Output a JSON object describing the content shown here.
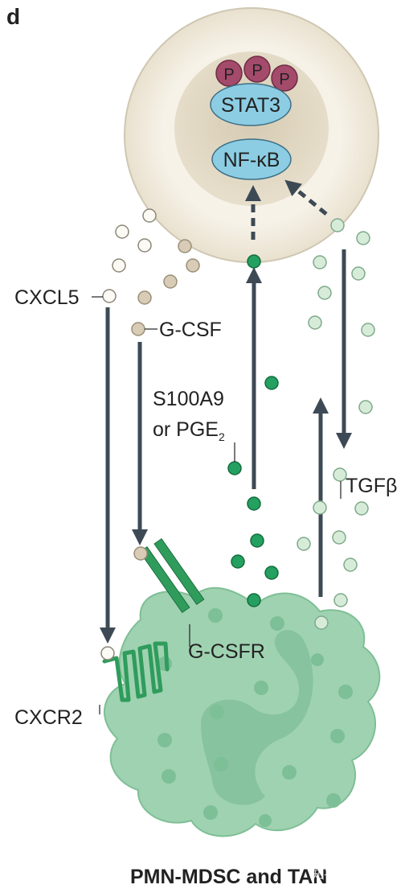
{
  "panel_label": "d",
  "nucleus": {
    "stat3": "STAT3",
    "nfkb": "NF-κB",
    "phospho": [
      "P",
      "P",
      "P"
    ]
  },
  "molecules": {
    "cxcl5": "CXCL5",
    "gcsf": "G-CSF",
    "s100a9_line1": "S100A9",
    "s100a9_line2_prefix": "or PGE",
    "s100a9_line2_sub": "2",
    "tgfb": "TGFβ",
    "gcsfr": "G-CSFR",
    "cxcr2": "CXCR2"
  },
  "cell_caption": "PMN-MDSC and TAN",
  "watermark": "知乎 @懿菜",
  "colors": {
    "outer_cell": "#f3eee2",
    "outer_cell_stroke": "#cfc7b2",
    "nucleus": "#ddd3bd",
    "phospho": "#a44a6a",
    "tf_oval": "#8ccde3",
    "mdsc_cell": "#9fd2b1",
    "mdsc_spot": "#7dbf96",
    "receptor": "#2f9c5c",
    "green_dot": "#24a060",
    "pale_green_dot": "#d6ecd9",
    "beige_dot": "#d8ccb6",
    "white_dot": "#fbfaf5",
    "arrow": "#3d4a55"
  }
}
